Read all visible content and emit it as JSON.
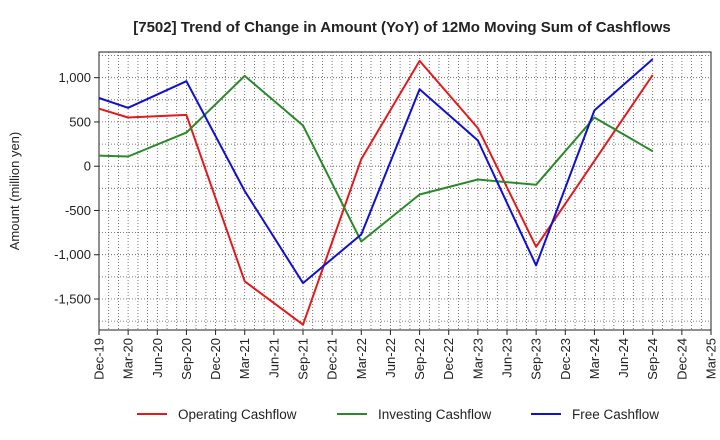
{
  "chart_data": {
    "type": "line",
    "title": "[7502]  Trend of Change in Amount (YoY) of 12Mo Moving Sum of Cashflows",
    "xlabel": "",
    "ylabel": "Amount (million yen)",
    "categories": [
      "Dec-19",
      "Mar-20",
      "Jun-20",
      "Sep-20",
      "Dec-20",
      "Mar-21",
      "Jun-21",
      "Sep-21",
      "Dec-21",
      "Mar-22",
      "Jun-22",
      "Sep-22",
      "Dec-22",
      "Mar-23",
      "Jun-23",
      "Sep-23",
      "Dec-23",
      "Mar-24",
      "Jun-24",
      "Sep-24",
      "Dec-24",
      "Mar-25"
    ],
    "ylim": [
      -1850,
      1290
    ],
    "yticks": [
      1000,
      500,
      0,
      -500,
      -1000,
      -1500
    ],
    "ytick_labels": [
      "1,000",
      "500",
      "0",
      "-500",
      "-1,000",
      "-1,500"
    ],
    "grid": true,
    "legend_position": "bottom",
    "series": [
      {
        "name": "Operating Cashflow",
        "color": "#e31a1c",
        "values": [
          650,
          550,
          null,
          580,
          null,
          -1300,
          null,
          -1790,
          null,
          80,
          null,
          1190,
          null,
          430,
          null,
          -910,
          null,
          null,
          null,
          1030,
          null,
          null
        ]
      },
      {
        "name": "Investing Cashflow",
        "color": "#2a8a2a",
        "values": [
          120,
          110,
          null,
          380,
          null,
          1020,
          null,
          460,
          null,
          -850,
          null,
          -320,
          null,
          -150,
          null,
          -210,
          null,
          550,
          null,
          170,
          null,
          null
        ]
      },
      {
        "name": "Free Cashflow",
        "color": "#1010d0",
        "values": [
          770,
          660,
          null,
          960,
          null,
          -280,
          null,
          -1320,
          null,
          -770,
          null,
          870,
          null,
          290,
          null,
          -1120,
          null,
          630,
          null,
          1210,
          null,
          null
        ]
      }
    ]
  }
}
